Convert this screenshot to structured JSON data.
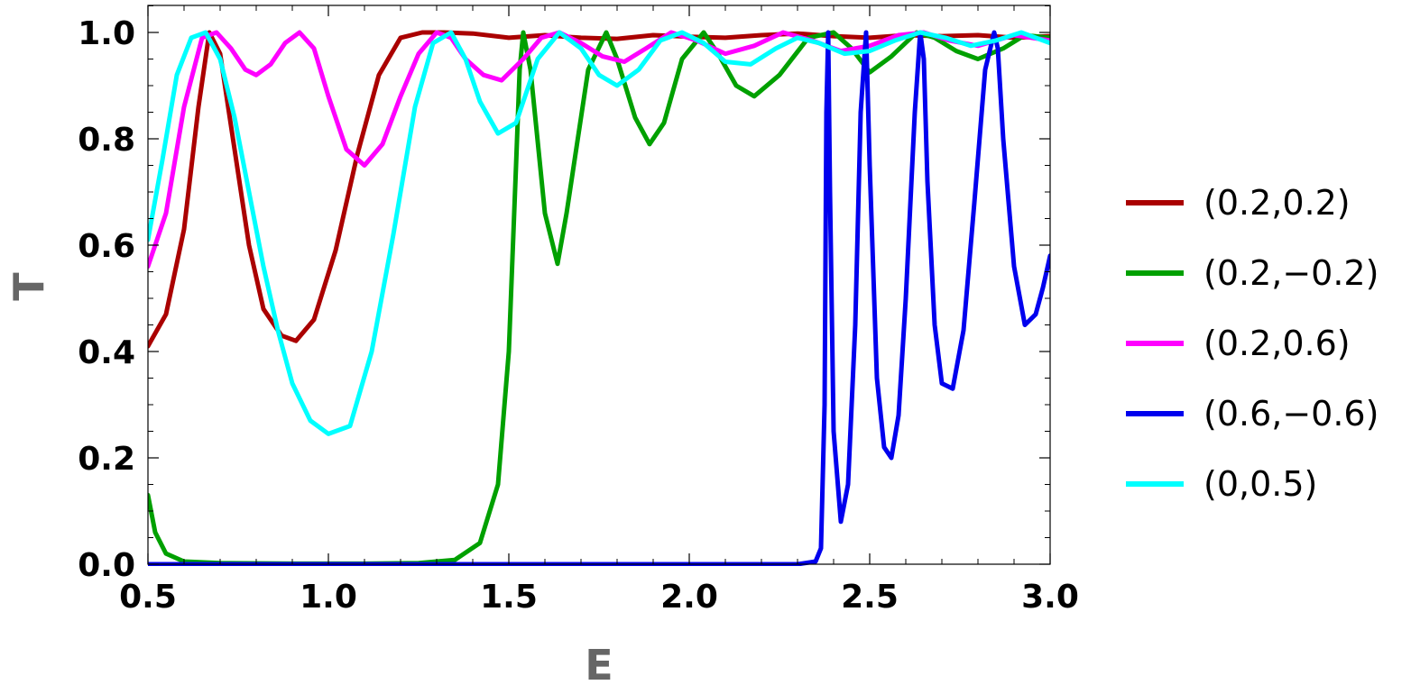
{
  "chart_data": {
    "type": "line",
    "xlabel": "E",
    "ylabel": "T",
    "xlim": [
      0.5,
      3.0
    ],
    "ylim": [
      0.0,
      1.0
    ],
    "xticks": [
      "0.5",
      "1.0",
      "1.5",
      "2.0",
      "2.5",
      "3.0"
    ],
    "yticks": [
      "0.0",
      "0.2",
      "0.4",
      "0.6",
      "0.8",
      "1.0"
    ],
    "grid": false,
    "legend_position": "right",
    "series": [
      {
        "name": "(0.2,0.2)",
        "color": "#aa0000",
        "x": [
          0.5,
          0.55,
          0.6,
          0.64,
          0.67,
          0.7,
          0.74,
          0.78,
          0.82,
          0.87,
          0.91,
          0.96,
          1.02,
          1.08,
          1.14,
          1.2,
          1.26,
          1.32,
          1.4,
          1.5,
          1.6,
          1.7,
          1.8,
          1.9,
          2.0,
          2.1,
          2.2,
          2.3,
          2.4,
          2.5,
          2.6,
          2.7,
          2.8,
          2.9,
          3.0
        ],
        "values": [
          0.41,
          0.47,
          0.63,
          0.86,
          1.0,
          0.96,
          0.78,
          0.6,
          0.48,
          0.43,
          0.42,
          0.46,
          0.59,
          0.77,
          0.92,
          0.99,
          1.0,
          1.0,
          0.998,
          0.99,
          0.995,
          0.99,
          0.988,
          0.995,
          0.992,
          0.99,
          0.995,
          0.998,
          0.993,
          0.99,
          0.995,
          0.993,
          0.995,
          0.99,
          0.993
        ]
      },
      {
        "name": "(0.2,−0.2)",
        "color": "#00a000",
        "x": [
          0.5,
          0.52,
          0.55,
          0.6,
          0.7,
          0.9,
          1.1,
          1.25,
          1.35,
          1.42,
          1.47,
          1.5,
          1.52,
          1.53,
          1.54,
          1.56,
          1.6,
          1.635,
          1.66,
          1.72,
          1.77,
          1.8,
          1.85,
          1.89,
          1.93,
          1.98,
          2.04,
          2.08,
          2.13,
          2.18,
          2.25,
          2.33,
          2.4,
          2.45,
          2.5,
          2.56,
          2.63,
          2.68,
          2.74,
          2.8,
          2.87,
          2.93,
          3.0
        ],
        "values": [
          0.13,
          0.06,
          0.02,
          0.005,
          0.002,
          0.001,
          0.001,
          0.002,
          0.008,
          0.04,
          0.15,
          0.4,
          0.75,
          0.93,
          1.0,
          0.93,
          0.66,
          0.565,
          0.66,
          0.93,
          1.0,
          0.95,
          0.84,
          0.79,
          0.83,
          0.95,
          1.0,
          0.96,
          0.9,
          0.88,
          0.92,
          0.99,
          1.0,
          0.97,
          0.925,
          0.955,
          1.0,
          0.99,
          0.965,
          0.95,
          0.97,
          0.995,
          0.99
        ]
      },
      {
        "name": "(0.2,0.6)",
        "color": "#ff00ff",
        "x": [
          0.5,
          0.55,
          0.6,
          0.65,
          0.69,
          0.73,
          0.77,
          0.8,
          0.84,
          0.88,
          0.92,
          0.96,
          1.0,
          1.05,
          1.1,
          1.15,
          1.2,
          1.25,
          1.3,
          1.34,
          1.38,
          1.43,
          1.48,
          1.54,
          1.59,
          1.64,
          1.7,
          1.76,
          1.82,
          1.88,
          1.95,
          2.02,
          2.1,
          2.18,
          2.26,
          2.34,
          2.42,
          2.5,
          2.58,
          2.65,
          2.72,
          2.8,
          2.9,
          3.0
        ],
        "values": [
          0.56,
          0.66,
          0.86,
          0.99,
          1.0,
          0.97,
          0.93,
          0.92,
          0.94,
          0.98,
          1.0,
          0.97,
          0.88,
          0.78,
          0.75,
          0.79,
          0.88,
          0.96,
          1.0,
          0.99,
          0.95,
          0.92,
          0.91,
          0.95,
          0.99,
          1.0,
          0.98,
          0.955,
          0.945,
          0.97,
          1.0,
          0.985,
          0.96,
          0.975,
          1.0,
          0.985,
          0.965,
          0.975,
          0.995,
          1.0,
          0.985,
          0.975,
          0.995,
          0.985
        ]
      },
      {
        "name": "(0.6,−0.6)",
        "color": "#0000ee",
        "x": [
          0.5,
          1.0,
          1.5,
          2.0,
          2.3,
          2.35,
          2.365,
          2.375,
          2.38,
          2.385,
          2.39,
          2.4,
          2.42,
          2.44,
          2.46,
          2.475,
          2.49,
          2.5,
          2.52,
          2.54,
          2.56,
          2.58,
          2.6,
          2.625,
          2.64,
          2.65,
          2.66,
          2.68,
          2.7,
          2.73,
          2.76,
          2.79,
          2.82,
          2.845,
          2.855,
          2.87,
          2.9,
          2.93,
          2.96,
          2.98,
          3.0
        ],
        "values": [
          0.0,
          0.0,
          0.0,
          0.0,
          0.0,
          0.005,
          0.03,
          0.3,
          0.85,
          1.0,
          0.7,
          0.25,
          0.08,
          0.15,
          0.45,
          0.85,
          1.0,
          0.75,
          0.35,
          0.22,
          0.2,
          0.28,
          0.5,
          0.85,
          1.0,
          0.95,
          0.72,
          0.45,
          0.34,
          0.33,
          0.44,
          0.68,
          0.93,
          1.0,
          0.97,
          0.8,
          0.56,
          0.45,
          0.47,
          0.52,
          0.58
        ]
      },
      {
        "name": "(0,0.5)",
        "color": "#00ffff",
        "x": [
          0.5,
          0.54,
          0.58,
          0.62,
          0.66,
          0.7,
          0.74,
          0.78,
          0.82,
          0.86,
          0.9,
          0.95,
          1.0,
          1.06,
          1.12,
          1.18,
          1.24,
          1.29,
          1.34,
          1.38,
          1.42,
          1.47,
          1.52,
          1.58,
          1.64,
          1.7,
          1.75,
          1.8,
          1.86,
          1.92,
          1.98,
          2.04,
          2.1,
          2.17,
          2.24,
          2.3,
          2.36,
          2.43,
          2.5,
          2.57,
          2.64,
          2.71,
          2.78,
          2.85,
          2.92,
          3.0
        ],
        "values": [
          0.61,
          0.76,
          0.92,
          0.99,
          1.0,
          0.95,
          0.84,
          0.7,
          0.56,
          0.44,
          0.34,
          0.27,
          0.245,
          0.26,
          0.4,
          0.62,
          0.86,
          0.98,
          1.0,
          0.95,
          0.87,
          0.81,
          0.83,
          0.95,
          1.0,
          0.97,
          0.92,
          0.9,
          0.93,
          0.985,
          1.0,
          0.98,
          0.945,
          0.94,
          0.97,
          0.99,
          0.98,
          0.96,
          0.965,
          0.985,
          1.0,
          0.99,
          0.975,
          0.985,
          1.0,
          0.98
        ]
      }
    ]
  }
}
